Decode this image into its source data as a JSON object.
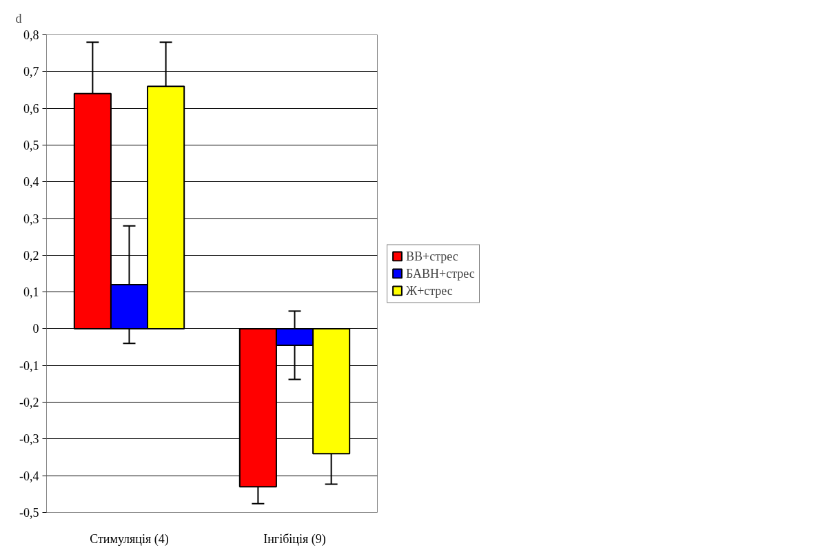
{
  "chart_data": {
    "type": "bar",
    "ylabel": "d",
    "categories": [
      "Стимуляція (4)",
      "Інгібіція (9)"
    ],
    "series": [
      {
        "name": "ВВ+стрес",
        "color": "#ff0000",
        "values": [
          0.64,
          -0.43
        ],
        "errors": [
          0.14,
          0.046
        ]
      },
      {
        "name": "БАВН+стрес",
        "color": "#0000ff",
        "values": [
          0.12,
          -0.045
        ],
        "errors": [
          0.16,
          0.093
        ]
      },
      {
        "name": "Ж+стрес",
        "color": "#ffff00",
        "values": [
          0.66,
          -0.34
        ],
        "errors": [
          0.12,
          0.083
        ]
      }
    ],
    "ylim": [
      -0.5,
      0.8
    ],
    "yticks": [
      {
        "value": -0.5,
        "label": "-0,5"
      },
      {
        "value": -0.4,
        "label": "-0,4"
      },
      {
        "value": -0.3,
        "label": "-0,3"
      },
      {
        "value": -0.2,
        "label": "-0,2"
      },
      {
        "value": -0.1,
        "label": "-0,1"
      },
      0,
      {
        "value": 0.1,
        "label": "0,1"
      },
      {
        "value": 0.2,
        "label": "0,2"
      },
      {
        "value": 0.3,
        "label": "0,3"
      },
      {
        "value": 0.4,
        "label": "0,4"
      },
      {
        "value": 0.5,
        "label": "0,5"
      },
      {
        "value": 0.6,
        "label": "0,6"
      },
      {
        "value": 0.7,
        "label": "0,7"
      },
      {
        "value": 0.8,
        "label": "0,8"
      }
    ],
    "grid": "y",
    "legend": "right"
  }
}
